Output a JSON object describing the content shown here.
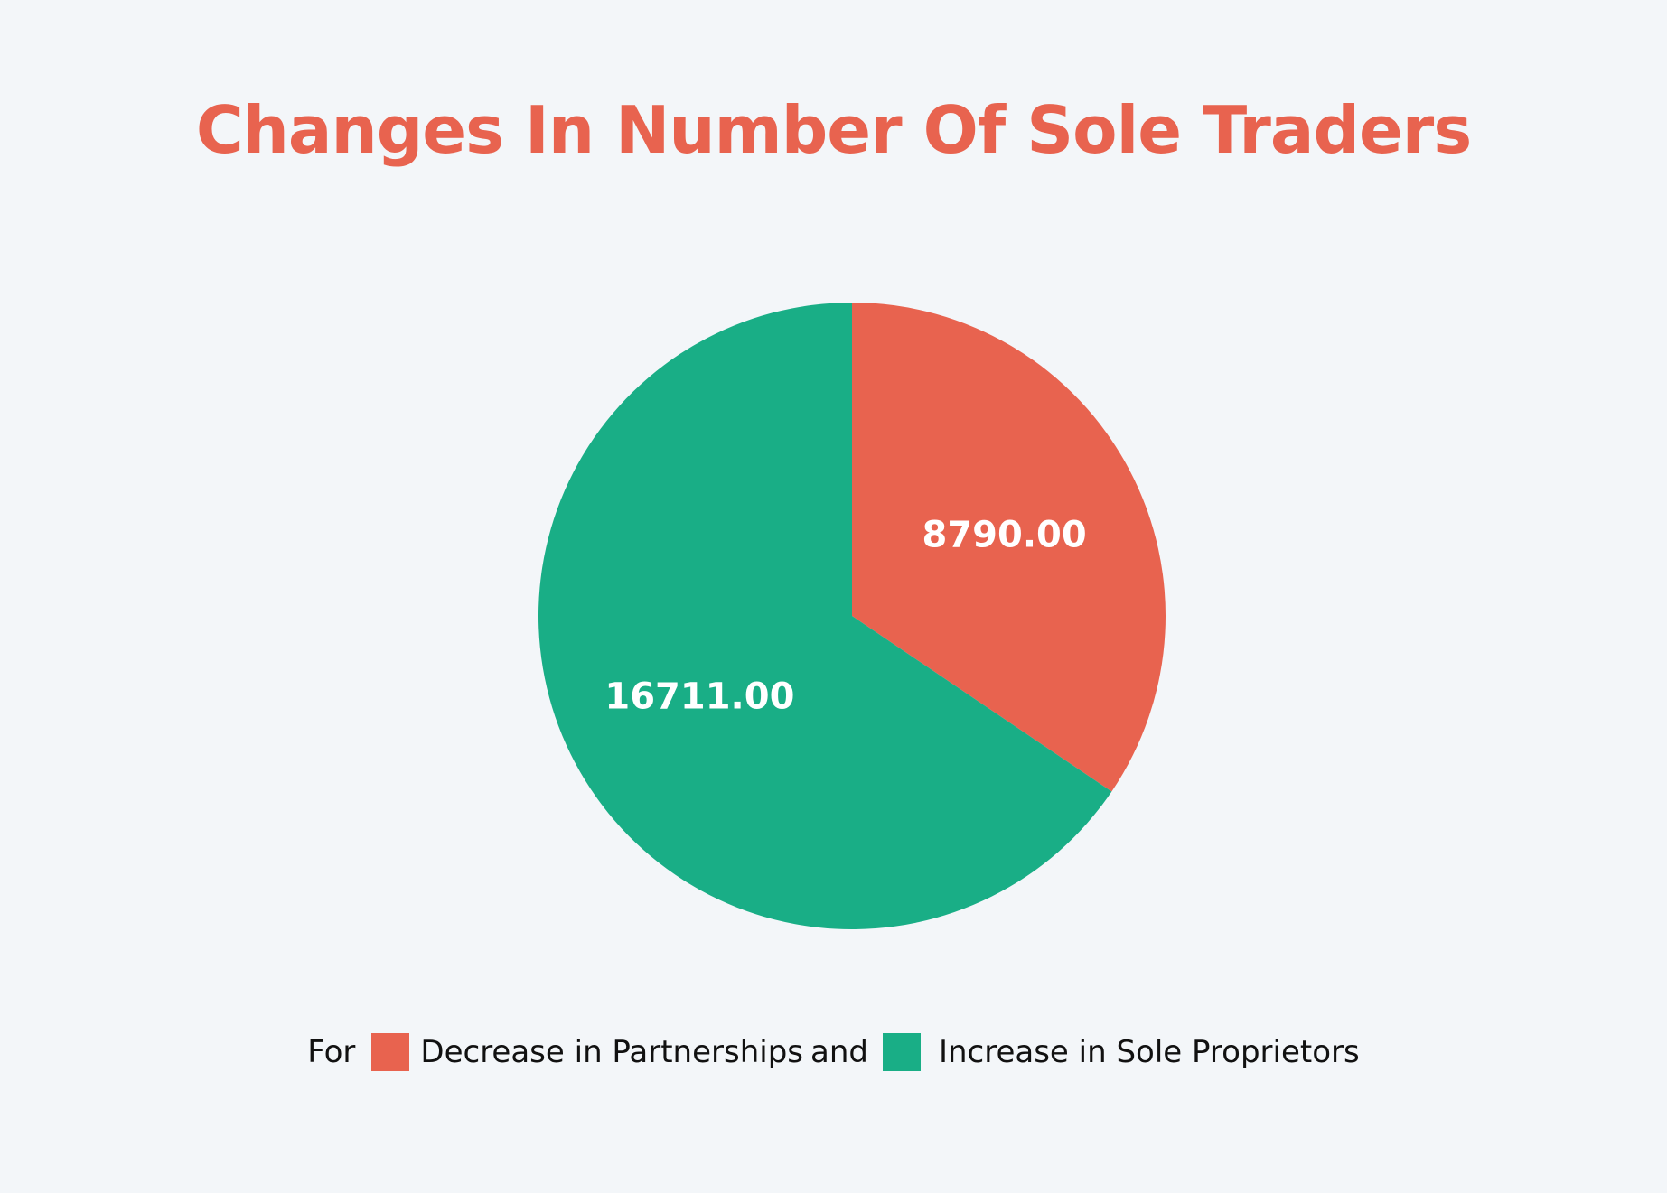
{
  "chart_data": {
    "type": "pie",
    "title": "Changes In Number Of Sole Traders",
    "title_color": "#e8634f",
    "legend_prefix": "For",
    "legend_joiner": "and",
    "legend_placement": "bottom",
    "slices": [
      {
        "name": "Decrease in Partnerships",
        "value": 8790.0,
        "label": "8790.00",
        "color": "#e8634f"
      },
      {
        "name": "Increase in Sole Proprietors",
        "value": 16711.0,
        "label": "16711.00",
        "color": "#19ae86"
      }
    ]
  }
}
